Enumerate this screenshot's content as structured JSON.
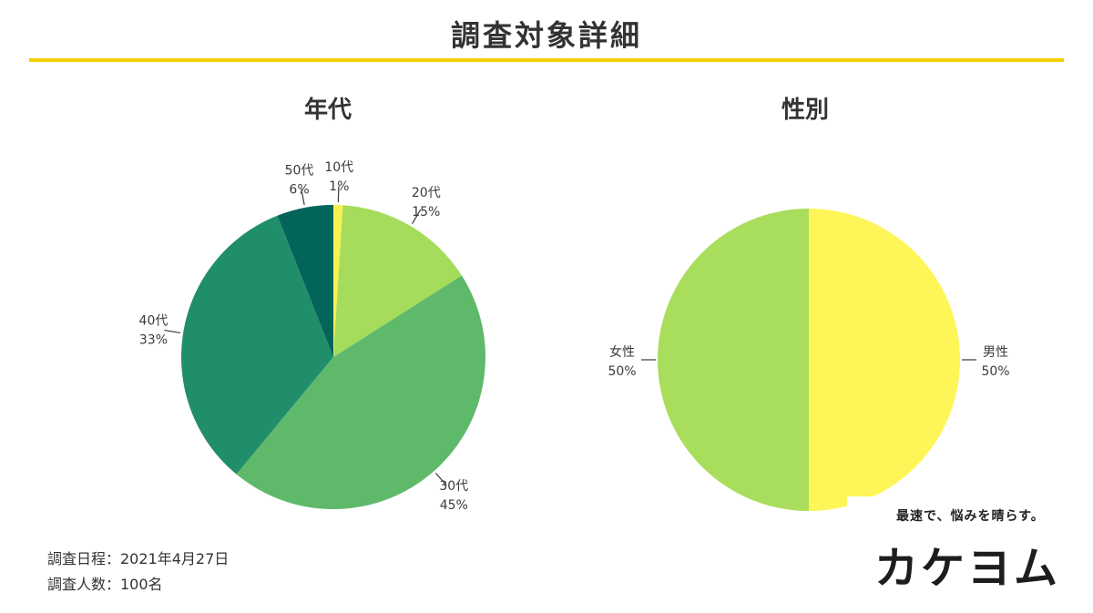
{
  "page": {
    "title": "調査対象詳細",
    "survey_date": "調査日程：2021年4月27日",
    "respondents": "調査人数：100名"
  },
  "brand": {
    "tagline": "最速で、悩みを晴らす。",
    "logo_text": "カケヨム"
  },
  "chart_data": [
    {
      "type": "pie",
      "title": "年代",
      "categories": [
        "10代",
        "20代",
        "30代",
        "40代",
        "50代"
      ],
      "values": [
        1,
        15,
        45,
        33,
        6
      ],
      "labels": [
        "1%",
        "15%",
        "45%",
        "33%",
        "6%"
      ],
      "colors": [
        "#f6f24e",
        "#a6dc5c",
        "#5fb96b",
        "#218e6b",
        "#036459"
      ]
    },
    {
      "type": "pie",
      "title": "性別",
      "categories": [
        "男性",
        "女性"
      ],
      "values": [
        50,
        50
      ],
      "labels": [
        "50%",
        "50%"
      ],
      "colors": [
        "#fef658",
        "#a9dd5c"
      ]
    }
  ]
}
